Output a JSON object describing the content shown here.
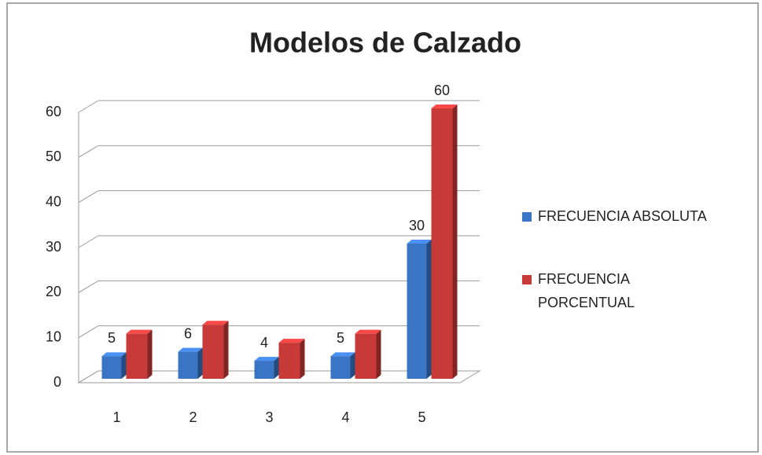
{
  "chart_data": {
    "type": "bar3d",
    "title": "Modelos de Calzado",
    "categories": [
      "1",
      "2",
      "3",
      "4",
      "5"
    ],
    "series": [
      {
        "name": "FRECUENCIA ABSOLUTA",
        "color": "#3a74c4",
        "values": [
          5,
          6,
          4,
          5,
          30
        ],
        "value_labels": [
          "5",
          "6",
          "4",
          "5",
          "30"
        ]
      },
      {
        "name": "FRECUENCIA PORCENTUAL",
        "color": "#c83a38",
        "values": [
          10,
          12,
          8,
          10,
          60
        ],
        "value_labels": [
          null,
          null,
          null,
          null,
          "60"
        ]
      }
    ],
    "ylim": [
      0,
      60
    ],
    "yticks": [
      0,
      10,
      20,
      30,
      40,
      50,
      60
    ],
    "grid": true,
    "legend": "right"
  }
}
